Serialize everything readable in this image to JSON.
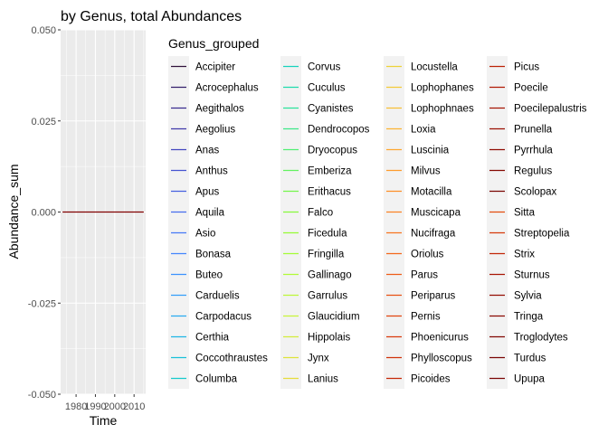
{
  "chart_data": {
    "type": "line",
    "title": "by Genus, total Abundances",
    "xlabel": "Time",
    "ylabel": "Abundance_sum",
    "x_ticks": [
      1980,
      1990,
      2000,
      2010
    ],
    "x_tick_labels": [
      "1980",
      "1990",
      "2000",
      "2010"
    ],
    "xlim": [
      1972,
      2016
    ],
    "y_ticks": [
      -0.05,
      -0.025,
      0,
      0.025,
      0.05
    ],
    "y_tick_labels": [
      "-0.050",
      "-0.025",
      "0.000",
      "0.025",
      "0.050"
    ],
    "ylim": [
      -0.05,
      0.05
    ],
    "grid": true,
    "series_line": {
      "x": [
        1973,
        2015
      ],
      "y": [
        0,
        0
      ],
      "color": "#800000"
    },
    "legend": {
      "title": "Genus_grouped",
      "placement": "right",
      "columns": 5,
      "entries": [
        {
          "name": "Accipiter",
          "color": "#30123b"
        },
        {
          "name": "Acrocephalus",
          "color": "#35206b"
        },
        {
          "name": "Aegithalos",
          "color": "#3b2c8f"
        },
        {
          "name": "Aegolius",
          "color": "#403aaa"
        },
        {
          "name": "Anas",
          "color": "#4346bf"
        },
        {
          "name": "Anthus",
          "color": "#4553d1"
        },
        {
          "name": "Apus",
          "color": "#4660e0"
        },
        {
          "name": "Aquila",
          "color": "#466ced"
        },
        {
          "name": "Asio",
          "color": "#4579f7"
        },
        {
          "name": "Bonasa",
          "color": "#4286fd"
        },
        {
          "name": "Buteo",
          "color": "#3b92fe"
        },
        {
          "name": "Carduelis",
          "color": "#339ef9"
        },
        {
          "name": "Carpodacus",
          "color": "#29aaf0"
        },
        {
          "name": "Certhia",
          "color": "#1fb5e5"
        },
        {
          "name": "Coccothraustes",
          "color": "#18c0d9"
        },
        {
          "name": "Columba",
          "color": "#15cacc"
        },
        {
          "name": "Corvus",
          "color": "#17d3bd"
        },
        {
          "name": "Cuculus",
          "color": "#1edbad"
        },
        {
          "name": "Cyanistes",
          "color": "#2be29b"
        },
        {
          "name": "Dendrocopos",
          "color": "#3ce888"
        },
        {
          "name": "Dryocopus",
          "color": "#50ee74"
        },
        {
          "name": "Emberiza",
          "color": "#63f25f"
        },
        {
          "name": "Erithacus",
          "color": "#76f64c"
        },
        {
          "name": "Falco",
          "color": "#87f93c"
        },
        {
          "name": "Ficedula",
          "color": "#96fb34"
        },
        {
          "name": "Fringilla",
          "color": "#a4fc34"
        },
        {
          "name": "Gallinago",
          "color": "#b1fb36"
        },
        {
          "name": "Garrulus",
          "color": "#bdf838"
        },
        {
          "name": "Glaucidium",
          "color": "#c8f33a"
        },
        {
          "name": "Hippolais",
          "color": "#d3ec3b"
        },
        {
          "name": "Jynx",
          "color": "#dde43b"
        },
        {
          "name": "Lanius",
          "color": "#e6dc3a"
        },
        {
          "name": "Locustella",
          "color": "#edd339"
        },
        {
          "name": "Lophophanes",
          "color": "#f3c938"
        },
        {
          "name": "Lophophnaes",
          "color": "#f8bf36"
        },
        {
          "name": "Loxia",
          "color": "#fbb433"
        },
        {
          "name": "Luscinia",
          "color": "#fda830"
        },
        {
          "name": "Milvus",
          "color": "#fe9c2c"
        },
        {
          "name": "Motacilla",
          "color": "#fd8f28"
        },
        {
          "name": "Muscicapa",
          "color": "#fb8224"
        },
        {
          "name": "Nucifraga",
          "color": "#f8751f"
        },
        {
          "name": "Oriolus",
          "color": "#f4681b"
        },
        {
          "name": "Parus",
          "color": "#ee5c17"
        },
        {
          "name": "Periparus",
          "color": "#e85013"
        },
        {
          "name": "Pernis",
          "color": "#e1450f"
        },
        {
          "name": "Phoenicurus",
          "color": "#d93b0c"
        },
        {
          "name": "Phylloscopus",
          "color": "#d0310a"
        },
        {
          "name": "Picoides",
          "color": "#c62908"
        },
        {
          "name": "Picus",
          "color": "#bc2206"
        },
        {
          "name": "Poecile",
          "color": "#b11b05"
        },
        {
          "name": "Poecilepalustris",
          "color": "#a61504"
        },
        {
          "name": "Prunella",
          "color": "#9b1004"
        },
        {
          "name": "Pyrrhula",
          "color": "#900c03"
        },
        {
          "name": "Regulus",
          "color": "#850902"
        },
        {
          "name": "Scolopax",
          "color": "#7a0602"
        },
        {
          "name": "Sitta",
          "color": "#e44d0e"
        },
        {
          "name": "Streptopelia",
          "color": "#d63a0b"
        },
        {
          "name": "Strix",
          "color": "#c22707"
        },
        {
          "name": "Sturnus",
          "color": "#a81604"
        },
        {
          "name": "Sylvia",
          "color": "#950e03"
        },
        {
          "name": "Tringa",
          "color": "#8a0a02"
        },
        {
          "name": "Troglodytes",
          "color": "#800702"
        },
        {
          "name": "Turdus",
          "color": "#7a0403"
        },
        {
          "name": "Upupa",
          "color": "#7a0403"
        }
      ]
    }
  }
}
